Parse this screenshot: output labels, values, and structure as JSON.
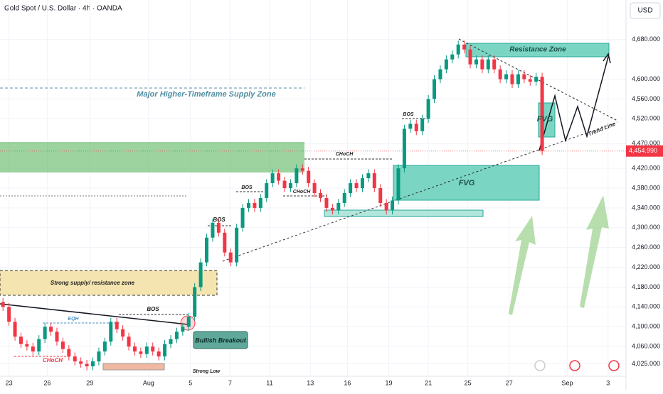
{
  "header": {
    "symbol": "Gold Spot / U.S. Dollar · 4h · OANDA",
    "currency": "USD"
  },
  "chart_data": {
    "type": "candlestick",
    "up_color": "#089981",
    "down_color": "#f23645",
    "xlim": [
      -0.5,
      104
    ],
    "ylim": [
      4000,
      4760
    ],
    "grid": true,
    "xticks": [
      {
        "value": 1,
        "label": "23"
      },
      {
        "value": 7.4,
        "label": "26"
      },
      {
        "value": 14.5,
        "label": "29"
      },
      {
        "value": 24.3,
        "label": "Aug"
      },
      {
        "value": 31.3,
        "label": "5"
      },
      {
        "value": 37.9,
        "label": "7"
      },
      {
        "value": 44.5,
        "label": "11"
      },
      {
        "value": 51.3,
        "label": "13"
      },
      {
        "value": 57.5,
        "label": "16"
      },
      {
        "value": 64.4,
        "label": "19"
      },
      {
        "value": 71,
        "label": "21"
      },
      {
        "value": 77.6,
        "label": "25"
      },
      {
        "value": 84.5,
        "label": "27"
      },
      {
        "value": 94.2,
        "label": "Sep"
      },
      {
        "value": 101,
        "label": "3"
      }
    ],
    "yticks": [
      {
        "value": 4680,
        "label": "4,680.000"
      },
      {
        "value": 4600,
        "label": "4,600.000"
      },
      {
        "value": 4560,
        "label": "4,560.000"
      },
      {
        "value": 4520,
        "label": "4,520.000"
      },
      {
        "value": 4470,
        "label": "4,470.000"
      },
      {
        "value": 4420,
        "label": "4,420.000"
      },
      {
        "value": 4380,
        "label": "4,380.000"
      },
      {
        "value": 4340,
        "label": "4,340.000"
      },
      {
        "value": 4300,
        "label": "4,300.000"
      },
      {
        "value": 4260,
        "label": "4,260.000"
      },
      {
        "value": 4220,
        "label": "4,220.000"
      },
      {
        "value": 4180,
        "label": "4,180.000"
      },
      {
        "value": 4140,
        "label": "4,140.000"
      },
      {
        "value": 4100,
        "label": "4,100.000"
      },
      {
        "value": 4060,
        "label": "4,060.000"
      },
      {
        "value": 4025,
        "label": "4,025.000"
      }
    ],
    "last_price": {
      "value": 4454.99,
      "label": "4,454.990"
    },
    "open": [
      4150,
      4140,
      4110,
      4080,
      4065,
      4060,
      4050,
      4075,
      4100,
      4090,
      4070,
      4055,
      4040,
      4030,
      4025,
      4020,
      4030,
      4050,
      4070,
      4110,
      4095,
      4080,
      4060,
      4050,
      4045,
      4060,
      4050,
      4040,
      4065,
      4075,
      4090,
      4100,
      4120,
      4180,
      4230,
      4280,
      4310,
      4290,
      4250,
      4230,
      4300,
      4340,
      4350,
      4340,
      4360,
      4390,
      4410,
      4395,
      4380,
      4390,
      4420,
      4415,
      4390,
      4370,
      4360,
      4340,
      4335,
      4350,
      4370,
      4390,
      4380,
      4400,
      4410,
      4380,
      4350,
      4335,
      4355,
      4420,
      4500,
      4510,
      4495,
      4520,
      4560,
      4600,
      4620,
      4640,
      4650,
      4670,
      4660,
      4630,
      4640,
      4620,
      4640,
      4620,
      4600,
      4610,
      4590,
      4610,
      4600,
      4595,
      4605
    ],
    "high": [
      4158,
      4148,
      4118,
      4088,
      4073,
      4068,
      4083,
      4108,
      4108,
      4098,
      4078,
      4063,
      4048,
      4038,
      4033,
      4038,
      4058,
      4078,
      4118,
      4118,
      4103,
      4088,
      4068,
      4058,
      4068,
      4068,
      4058,
      4073,
      4083,
      4098,
      4108,
      4128,
      4188,
      4238,
      4288,
      4318,
      4318,
      4298,
      4258,
      4308,
      4348,
      4358,
      4358,
      4368,
      4398,
      4418,
      4418,
      4403,
      4398,
      4428,
      4428,
      4423,
      4398,
      4378,
      4368,
      4348,
      4358,
      4378,
      4398,
      4398,
      4408,
      4418,
      4418,
      4388,
      4358,
      4363,
      4428,
      4508,
      4518,
      4518,
      4528,
      4568,
      4608,
      4628,
      4648,
      4658,
      4678,
      4678,
      4668,
      4648,
      4648,
      4648,
      4648,
      4628,
      4618,
      4618,
      4618,
      4618,
      4608,
      4613,
      4613
    ],
    "low": [
      4132,
      4102,
      4072,
      4057,
      4052,
      4042,
      4042,
      4067,
      4082,
      4062,
      4047,
      4032,
      4022,
      4017,
      4012,
      4012,
      4022,
      4042,
      4062,
      4087,
      4072,
      4052,
      4042,
      4037,
      4037,
      4042,
      4032,
      4032,
      4057,
      4067,
      4082,
      4092,
      4112,
      4172,
      4222,
      4272,
      4282,
      4242,
      4222,
      4222,
      4292,
      4332,
      4332,
      4332,
      4352,
      4382,
      4387,
      4372,
      4372,
      4382,
      4407,
      4382,
      4362,
      4352,
      4332,
      4327,
      4327,
      4342,
      4362,
      4372,
      4372,
      4392,
      4372,
      4342,
      4327,
      4327,
      4347,
      4412,
      4492,
      4487,
      4487,
      4512,
      4552,
      4592,
      4612,
      4632,
      4642,
      4652,
      4622,
      4622,
      4612,
      4612,
      4612,
      4592,
      4592,
      4582,
      4582,
      4592,
      4587,
      4587,
      4447
    ],
    "close": [
      4140,
      4110,
      4080,
      4065,
      4060,
      4050,
      4075,
      4100,
      4090,
      4070,
      4055,
      4040,
      4030,
      4025,
      4020,
      4030,
      4050,
      4070,
      4110,
      4095,
      4080,
      4060,
      4050,
      4045,
      4060,
      4050,
      4040,
      4065,
      4075,
      4090,
      4100,
      4120,
      4180,
      4230,
      4280,
      4310,
      4290,
      4250,
      4230,
      4300,
      4340,
      4350,
      4340,
      4360,
      4390,
      4410,
      4395,
      4380,
      4390,
      4420,
      4415,
      4390,
      4370,
      4360,
      4340,
      4335,
      4350,
      4370,
      4390,
      4380,
      4400,
      4410,
      4380,
      4350,
      4335,
      4355,
      4420,
      4500,
      4510,
      4495,
      4520,
      4560,
      4600,
      4620,
      4640,
      4650,
      4670,
      4660,
      4630,
      4640,
      4620,
      4640,
      4620,
      4600,
      4610,
      4590,
      4610,
      4600,
      4595,
      4605,
      4455
    ],
    "annotations": [
      "Major Higher-Timeframe Supply Zone",
      "Resistance Zone",
      "FVG",
      "FVG",
      "Trend Line",
      "Strong supply/ resistance zone",
      "BOS",
      "Bullish Breakout",
      "BOS",
      "BOS",
      "CHoCH",
      "CHoCH",
      "BOS",
      "EQH",
      "CHoCH",
      "Strong Low"
    ]
  }
}
